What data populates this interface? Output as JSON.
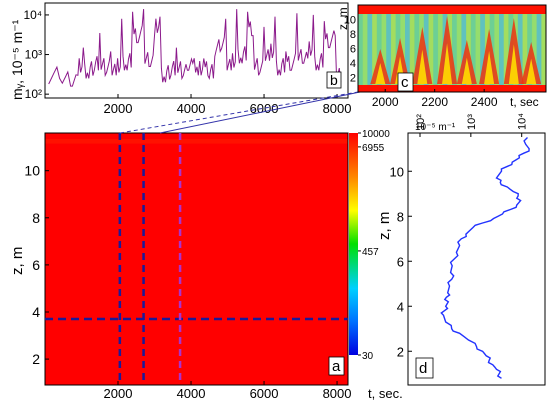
{
  "chart_data": [
    {
      "panel": "a",
      "type": "heatmap",
      "xlabel": "",
      "ylabel": "z, m",
      "x_ticks": [
        2000,
        4000,
        6000,
        8000
      ],
      "y_ticks": [
        2,
        4,
        6,
        8,
        10
      ],
      "xlim": [
        0,
        8300
      ],
      "ylim": [
        11.6,
        0.9
      ],
      "colorbar": {
        "scale": "log",
        "range": [
          30,
          10000
        ],
        "tick_labels": [
          "10000",
          "6955",
          "457",
          "30"
        ],
        "colors": [
          "#ff0000",
          "#ffff00",
          "#00e000",
          "#00c8ff",
          "#0000ff"
        ]
      },
      "dashed_lines": {
        "horizontal_z": 3.7,
        "vertical_t": [
          2050,
          2700,
          3700
        ]
      },
      "grid": false
    },
    {
      "panel": "b",
      "type": "line",
      "ylabel": "mᵧ, 10⁻⁵ m⁻¹",
      "x_ticks": [
        2000,
        4000,
        6000,
        8000
      ],
      "y_tick_labels": [
        "10²",
        "10³",
        "10⁴"
      ],
      "y_scale": "log",
      "xlim": [
        0,
        8300
      ],
      "ylim": [
        80,
        20000
      ],
      "color": "#8b1a8b",
      "series": [
        {
          "x": [
            100,
            400,
            700,
            900,
            1050,
            1200,
            1350,
            1500,
            1650,
            1800,
            1950,
            2100,
            2250,
            2400,
            2550,
            2700,
            2850,
            3000,
            3150,
            3300,
            3450,
            3600,
            3750,
            3900,
            4050,
            4200,
            4350,
            4500,
            4650,
            4800,
            4950,
            5100,
            5250,
            5400,
            5550,
            5700,
            5850,
            6000,
            6150,
            6300,
            6450,
            6600,
            6750,
            6900,
            7050,
            7200,
            7350,
            7500,
            7650,
            7800,
            7950,
            8100
          ],
          "y": [
            180,
            250,
            160,
            300,
            1500,
            250,
            400,
            3500,
            300,
            1200,
            300,
            8000,
            400,
            12000,
            2000,
            14000,
            500,
            3000,
            9000,
            200,
            300,
            1500,
            250,
            400,
            600,
            300,
            800,
            250,
            900,
            1200,
            8000,
            400,
            14000,
            600,
            12000,
            3000,
            300,
            5000,
            700,
            9000,
            300,
            1200,
            400,
            11000,
            600,
            800,
            10000,
            400,
            7000,
            1500,
            3000,
            200
          ]
        }
      ],
      "grid": false
    },
    {
      "panel": "c",
      "type": "heatmap",
      "ylabel": "z, m",
      "xlabel": "t, sec",
      "x_ticks": [
        2000,
        2200,
        2400
      ],
      "y_ticks": [
        2,
        4,
        6,
        8,
        10
      ],
      "xlim": [
        1890,
        2650
      ],
      "ylim": [
        12,
        0
      ],
      "grid": false
    },
    {
      "panel": "d",
      "type": "line",
      "xlabel": "10⁻⁵ m⁻¹",
      "ylabel": "z, m",
      "x_scale": "log",
      "x_tick_labels": [
        "10²",
        "10³",
        "10⁴"
      ],
      "y_ticks": [
        2,
        4,
        6,
        8,
        10
      ],
      "ylim": [
        0.5,
        11.7
      ],
      "color": "#2233ff",
      "series": [
        {
          "x": [
            13000,
            12000,
            14000,
            11000,
            9000,
            6500,
            5000,
            4000,
            3200,
            3800,
            5200,
            6800,
            8500,
            9500,
            8000,
            6000,
            4200,
            2800,
            1700,
            1100,
            800,
            650,
            600,
            520,
            470,
            430,
            400,
            420,
            380,
            350,
            330,
            360,
            320,
            300,
            290,
            320,
            420,
            600,
            900,
            1300,
            1700,
            2000,
            2300,
            2700,
            3200,
            3600,
            4000
          ],
          "y": [
            11.5,
            11.2,
            11.0,
            10.8,
            10.6,
            10.4,
            10.2,
            10.0,
            9.7,
            9.5,
            9.3,
            9.1,
            8.9,
            8.7,
            8.5,
            8.3,
            8.1,
            7.9,
            7.7,
            7.5,
            7.2,
            7.0,
            6.7,
            6.4,
            6.1,
            5.8,
            5.5,
            5.2,
            4.9,
            4.6,
            4.4,
            4.2,
            4.0,
            3.8,
            3.6,
            3.3,
            3.0,
            2.8,
            2.5,
            2.2,
            2.0,
            1.8,
            1.6,
            1.4,
            1.2,
            1.0,
            0.8
          ]
        }
      ],
      "grid": false
    }
  ],
  "labels": {
    "panel_a": "a",
    "panel_b": "b",
    "panel_c": "c",
    "panel_d": "d",
    "z_a": "z, m",
    "z_c": "z, m",
    "z_d": "z, m",
    "t_sec_c": "t, sec",
    "t_sec_a": "t, sec.",
    "m_unit_top": "10⁻⁵ m⁻¹",
    "m_v_top": "mᵧ",
    "b_ylabel": "mᵧ, 10⁻⁵ m⁻¹"
  }
}
